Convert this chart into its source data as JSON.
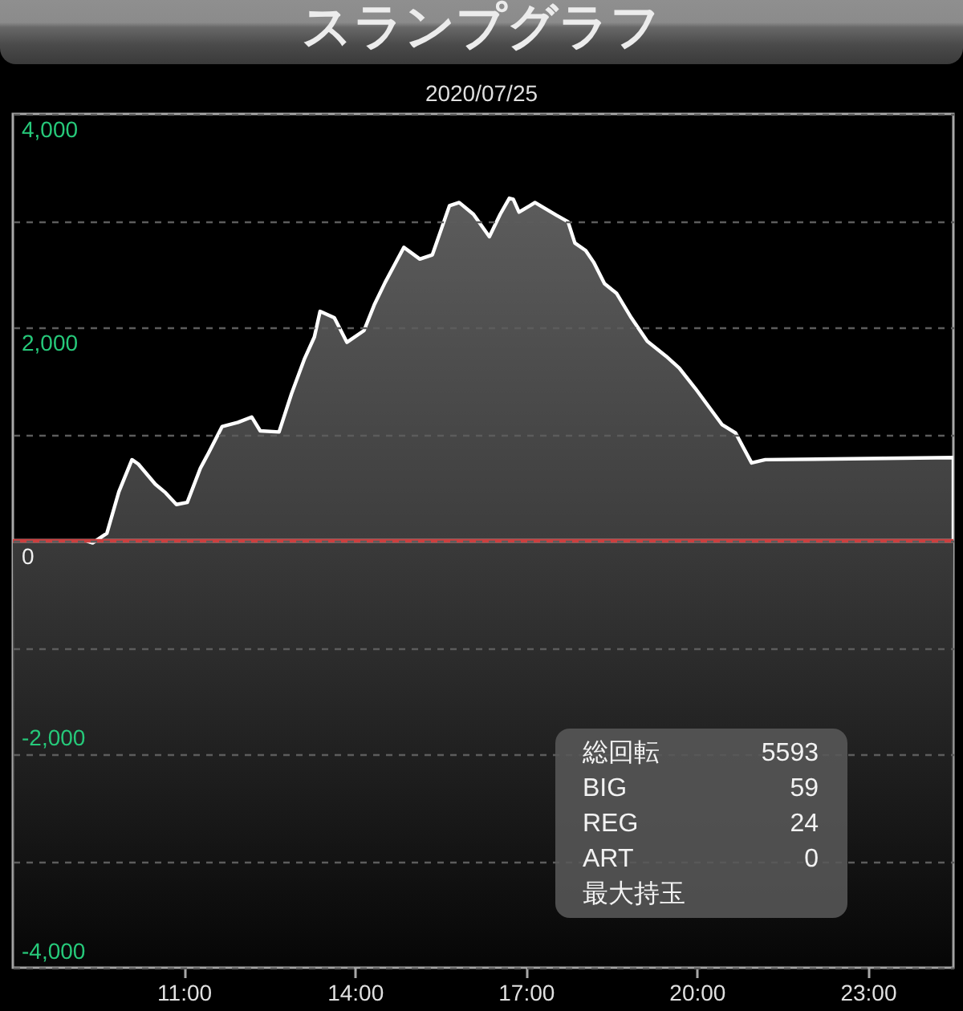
{
  "chart_data": {
    "type": "area",
    "title": "スランプグラフ",
    "subtitle": "2020/07/25",
    "x": [
      8.0,
      9.28,
      9.4,
      9.65,
      9.86,
      10.09,
      10.2,
      10.5,
      10.68,
      10.87,
      11.06,
      11.29,
      11.43,
      11.67,
      11.95,
      12.19,
      12.34,
      12.67,
      12.89,
      13.12,
      13.29,
      13.39,
      13.64,
      13.86,
      14.16,
      14.34,
      14.53,
      14.86,
      15.14,
      15.36,
      15.66,
      15.83,
      16.08,
      16.36,
      16.55,
      16.71,
      16.78,
      16.88,
      17.07,
      17.16,
      17.35,
      17.54,
      17.74,
      17.86,
      18.05,
      18.19,
      18.38,
      18.59,
      18.85,
      19.13,
      19.46,
      19.69,
      19.97,
      20.26,
      20.44,
      20.68,
      20.96,
      21.2,
      24.5
    ],
    "series": [
      {
        "color": "#ffffff",
        "values": [
          0,
          0,
          -20,
          70,
          460,
          760,
          720,
          530,
          450,
          340,
          360,
          680,
          820,
          1070,
          1110,
          1160,
          1030,
          1020,
          1380,
          1710,
          1910,
          2150,
          2090,
          1860,
          1970,
          2210,
          2420,
          2750,
          2640,
          2680,
          3140,
          3170,
          3060,
          2850,
          3060,
          3210,
          3200,
          3080,
          3140,
          3170,
          3110,
          3050,
          2990,
          2790,
          2720,
          2610,
          2410,
          2320,
          2090,
          1870,
          1730,
          1620,
          1430,
          1220,
          1090,
          1010,
          730,
          760,
          780
        ]
      }
    ],
    "xlim": [
      8,
      24.5
    ],
    "xticks": [
      {
        "value": 11,
        "label": "11:00"
      },
      {
        "value": 14,
        "label": "14:00"
      },
      {
        "value": 17,
        "label": "17:00"
      },
      {
        "value": 20,
        "label": "20:00"
      },
      {
        "value": 23,
        "label": "23:00"
      }
    ],
    "ylim": [
      -4000,
      4000
    ],
    "yticks": [
      {
        "value": 4000,
        "label": "4,000"
      },
      {
        "value": 3000,
        "label": null
      },
      {
        "value": 2000,
        "label": "2,000"
      },
      {
        "value": 1000,
        "label": null
      },
      0,
      {
        "value": -1000,
        "label": null
      },
      {
        "value": -2000,
        "label": "-2,000"
      },
      {
        "value": -3000,
        "label": null
      },
      {
        "value": -4000,
        "label": "-4,000"
      }
    ],
    "grid": "y",
    "ref_lines": [
      {
        "axis": "y",
        "value": 0,
        "color": "#cc3f3f"
      }
    ],
    "bands": [
      {
        "axis": "y",
        "from": -4000,
        "to": 0,
        "color": "#3a3a3a"
      }
    ],
    "annotations": [
      "総回転 5593",
      "BIG 59",
      "REG 24",
      "ART 0",
      "最大持玉"
    ]
  }
}
